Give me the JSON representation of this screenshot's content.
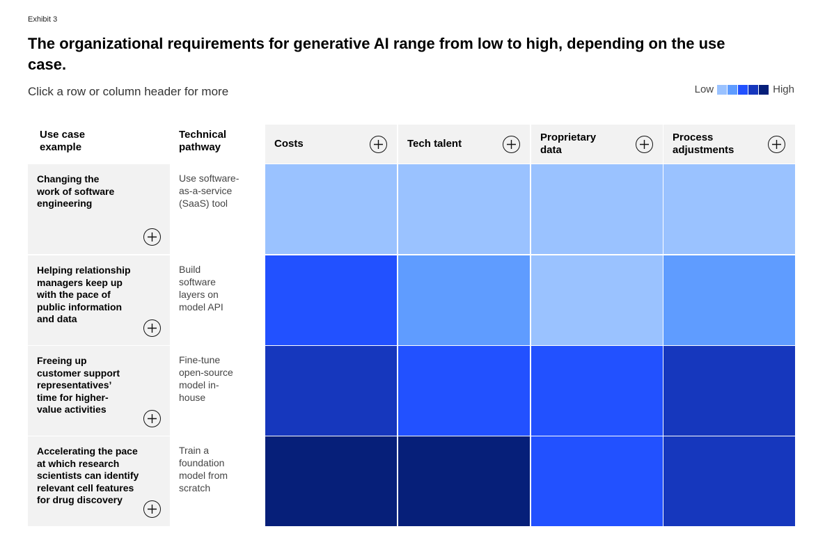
{
  "exhibit": "Exhibit 3",
  "title": "The organizational requirements for generative AI range from low to high, depending on the use case.",
  "subtitle": "Click a row or column header for more",
  "legend": {
    "low_label": "Low",
    "high_label": "High",
    "colors": [
      "#9ac2ff",
      "#5f9cff",
      "#2251ff",
      "#1637bd",
      "#061f79"
    ]
  },
  "header": {
    "use_case_label": "Use case\nexample",
    "pathway_label": "Technical\npathway"
  },
  "chart_data": {
    "type": "heatmap",
    "title": "The organizational requirements for generative AI range from low to high, depending on the use case.",
    "scale": [
      "Low",
      "",
      "",
      "",
      "High"
    ],
    "columns": [
      "Costs",
      "Tech talent",
      "Proprietary\ndata",
      "Process\nadjustments"
    ],
    "rows": [
      {
        "use_case": "Changing the\nwork of software\nengineering",
        "pathway": "Use software-\nas-a-service\n(SaaS) tool",
        "levels": [
          1,
          1,
          1,
          1
        ]
      },
      {
        "use_case": "Helping relationship\nmanagers keep up\nwith the pace of\npublic information\nand data",
        "pathway": "Build\nsoftware\nlayers on\nmodel API",
        "levels": [
          3,
          2,
          1,
          2
        ]
      },
      {
        "use_case": "Freeing up\ncustomer support\nrepresentatives’\ntime for higher-\nvalue activities",
        "pathway": "Fine-tune\nopen-source\nmodel in-\nhouse",
        "levels": [
          4,
          3,
          3,
          4
        ]
      },
      {
        "use_case": "Accelerating the pace\nat which research\nscientists can identify\nrelevant cell features\nfor drug discovery",
        "pathway": "Train a\nfoundation\nmodel from\nscratch",
        "levels": [
          5,
          5,
          3,
          4
        ]
      }
    ]
  }
}
